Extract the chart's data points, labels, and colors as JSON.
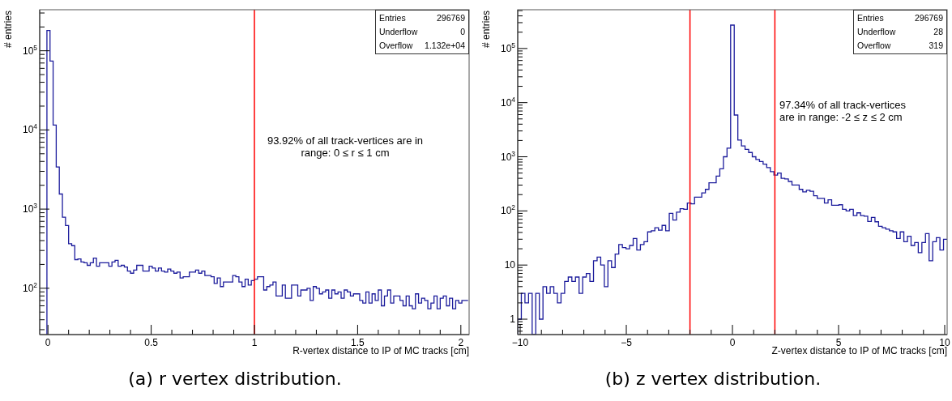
{
  "chart_data": [
    {
      "type": "histogram",
      "title": "(a) r vertex distribution.",
      "xlabel": "R-vertex distance to IP of MC tracks [cm]",
      "ylabel": "# entries",
      "color": "#1c1c9c",
      "log": true,
      "xlim": [
        -0.04,
        2.04
      ],
      "ylim": [
        26,
        330000
      ],
      "xticks": [
        0,
        {
          "value": 0.1,
          "label": null
        },
        {
          "value": 0.2,
          "label": null
        },
        {
          "value": 0.3,
          "label": null
        },
        {
          "value": 0.4,
          "label": null
        },
        0.5,
        {
          "value": 0.6,
          "label": null
        },
        {
          "value": 0.7,
          "label": null
        },
        {
          "value": 0.8,
          "label": null
        },
        {
          "value": 0.9,
          "label": null
        },
        1,
        {
          "value": 1.1,
          "label": null
        },
        {
          "value": 1.2,
          "label": null
        },
        {
          "value": 1.3,
          "label": null
        },
        {
          "value": 1.4,
          "label": null
        },
        1.5,
        {
          "value": 1.6,
          "label": null
        },
        {
          "value": 1.7,
          "label": null
        },
        {
          "value": 1.8,
          "label": null
        },
        {
          "value": 1.9,
          "label": null
        },
        2
      ],
      "yticks": [
        {
          "value": 30,
          "label": null
        },
        {
          "value": 40,
          "label": null
        },
        {
          "value": 50,
          "label": null
        },
        {
          "value": 60,
          "label": null
        },
        {
          "value": 70,
          "label": null
        },
        {
          "value": 80,
          "label": null
        },
        {
          "value": 90,
          "label": null
        },
        {
          "value": 100,
          "label": "10$^{2}$"
        },
        {
          "value": 200,
          "label": null
        },
        {
          "value": 300,
          "label": null
        },
        {
          "value": 400,
          "label": null
        },
        {
          "value": 500,
          "label": null
        },
        {
          "value": 600,
          "label": null
        },
        {
          "value": 700,
          "label": null
        },
        {
          "value": 800,
          "label": null
        },
        {
          "value": 900,
          "label": null
        },
        {
          "value": 1000,
          "label": "10$^{3}$"
        },
        {
          "value": 2000,
          "label": null
        },
        {
          "value": 3000,
          "label": null
        },
        {
          "value": 4000,
          "label": null
        },
        {
          "value": 5000,
          "label": null
        },
        {
          "value": 6000,
          "label": null
        },
        {
          "value": 7000,
          "label": null
        },
        {
          "value": 8000,
          "label": null
        },
        {
          "value": 9000,
          "label": null
        },
        {
          "value": 10000,
          "label": "10$^{4}$"
        },
        {
          "value": 20000,
          "label": null
        },
        {
          "value": 30000,
          "label": null
        },
        {
          "value": 40000,
          "label": null
        },
        {
          "value": 50000,
          "label": null
        },
        {
          "value": 60000,
          "label": null
        },
        {
          "value": 70000,
          "label": null
        },
        {
          "value": 80000,
          "label": null
        },
        {
          "value": 90000,
          "label": null
        },
        {
          "value": 100000,
          "label": "10$^{5}$"
        },
        {
          "value": 200000,
          "label": null
        },
        {
          "value": 300000,
          "label": null
        }
      ],
      "bins": [
        -0.005,
        0.01,
        0.025,
        0.04,
        0.055,
        0.07,
        0.085,
        0.1,
        0.115,
        0.13,
        0.145,
        0.16,
        0.175,
        0.19,
        0.205,
        0.22,
        0.235,
        0.25,
        0.265,
        0.28,
        0.295,
        0.31,
        0.325,
        0.34,
        0.355,
        0.37,
        0.385,
        0.4,
        0.415,
        0.43,
        0.445,
        0.46,
        0.475,
        0.49,
        0.505,
        0.52,
        0.535,
        0.55,
        0.565,
        0.58,
        0.595,
        0.61,
        0.625,
        0.64,
        0.655,
        0.67,
        0.685,
        0.7,
        0.715,
        0.73,
        0.745,
        0.76,
        0.775,
        0.79,
        0.805,
        0.82,
        0.835,
        0.85,
        0.865,
        0.88,
        0.895,
        0.91,
        0.925,
        0.94,
        0.955,
        0.97,
        0.985,
        1,
        1.015,
        1.03,
        1.045,
        1.06,
        1.075,
        1.09,
        1.105,
        1.12,
        1.135,
        1.15,
        1.165,
        1.18,
        1.195,
        1.21,
        1.225,
        1.24,
        1.255,
        1.27,
        1.285,
        1.3,
        1.315,
        1.33,
        1.345,
        1.36,
        1.375,
        1.39,
        1.405,
        1.42,
        1.435,
        1.45,
        1.465,
        1.48,
        1.495,
        1.51,
        1.525,
        1.54,
        1.555,
        1.57,
        1.585,
        1.6,
        1.615,
        1.63,
        1.645,
        1.66,
        1.675,
        1.69,
        1.705,
        1.72,
        1.735,
        1.75,
        1.765,
        1.78,
        1.795,
        1.81,
        1.825,
        1.84,
        1.855,
        1.87,
        1.885,
        1.9,
        1.915,
        1.93,
        1.945,
        1.96,
        1.975,
        1.99,
        2.005,
        2.02,
        2.035
      ],
      "values": [
        180000,
        74000,
        11500,
        3400,
        1550,
        790,
        620,
        365,
        345,
        230,
        235,
        215,
        210,
        195,
        210,
        240,
        190,
        210,
        210,
        210,
        190,
        215,
        225,
        190,
        195,
        185,
        165,
        155,
        170,
        195,
        195,
        165,
        165,
        190,
        180,
        165,
        180,
        165,
        160,
        175,
        165,
        155,
        160,
        135,
        140,
        140,
        160,
        160,
        170,
        155,
        165,
        145,
        145,
        140,
        115,
        135,
        105,
        120,
        120,
        120,
        145,
        140,
        120,
        105,
        130,
        110,
        125,
        130,
        140,
        140,
        95,
        105,
        110,
        120,
        80,
        80,
        110,
        75,
        75,
        110,
        110,
        80,
        95,
        95,
        100,
        70,
        105,
        100,
        85,
        90,
        95,
        75,
        95,
        85,
        90,
        75,
        95,
        90,
        80,
        85,
        85,
        70,
        65,
        90,
        65,
        85,
        70,
        95,
        60,
        80,
        95,
        65,
        80,
        80,
        70,
        60,
        80,
        60,
        55,
        85,
        65,
        75,
        70,
        55,
        65,
        80,
        55,
        75,
        80,
        60,
        75,
        55,
        70,
        65,
        70,
        70
      ],
      "ref_lines": [
        {
          "axis": "x",
          "value": 1,
          "color": "#ff0000"
        }
      ],
      "annotations": [
        "Entries",
        "296769",
        "Underflow",
        "0",
        "Overflow",
        "1.132e+04",
        "93.92% of all track-vertices are in\nrange: 0 ≤ r ≤ 1 cm"
      ]
    },
    {
      "type": "histogram",
      "title": "(b) z vertex distribution.",
      "xlabel": "Z-vertex distance to IP of MC tracks [cm]",
      "ylabel": "# entries",
      "color": "#1c1c9c",
      "log": true,
      "xlim": [
        -10.115,
        10.115
      ],
      "ylim": [
        0.52,
        520000
      ],
      "xticks": [
        {
          "value": -10,
          "label": "−10"
        },
        {
          "value": -9,
          "label": null
        },
        {
          "value": -8,
          "label": null
        },
        {
          "value": -7,
          "label": null
        },
        {
          "value": -6,
          "label": null
        },
        {
          "value": -5,
          "label": "−5"
        },
        {
          "value": -4,
          "label": null
        },
        {
          "value": -3,
          "label": null
        },
        {
          "value": -2,
          "label": null
        },
        {
          "value": -1,
          "label": null
        },
        0,
        {
          "value": 1,
          "label": null
        },
        {
          "value": 2,
          "label": null
        },
        {
          "value": 3,
          "label": null
        },
        {
          "value": 4,
          "label": null
        },
        5,
        {
          "value": 6,
          "label": null
        },
        {
          "value": 7,
          "label": null
        },
        {
          "value": 8,
          "label": null
        },
        {
          "value": 9,
          "label": null
        },
        10
      ],
      "yticks": [
        {
          "value": 0.6,
          "label": null
        },
        {
          "value": 0.7,
          "label": null
        },
        {
          "value": 0.8,
          "label": null
        },
        {
          "value": 0.9,
          "label": null
        },
        1,
        {
          "value": 2,
          "label": null
        },
        {
          "value": 3,
          "label": null
        },
        {
          "value": 4,
          "label": null
        },
        {
          "value": 5,
          "label": null
        },
        {
          "value": 6,
          "label": null
        },
        {
          "value": 7,
          "label": null
        },
        {
          "value": 8,
          "label": null
        },
        {
          "value": 9,
          "label": null
        },
        10,
        {
          "value": 20,
          "label": null
        },
        {
          "value": 30,
          "label": null
        },
        {
          "value": 40,
          "label": null
        },
        {
          "value": 50,
          "label": null
        },
        {
          "value": 60,
          "label": null
        },
        {
          "value": 70,
          "label": null
        },
        {
          "value": 80,
          "label": null
        },
        {
          "value": 90,
          "label": null
        },
        {
          "value": 100,
          "label": "10$^{2}$"
        },
        {
          "value": 200,
          "label": null
        },
        {
          "value": 300,
          "label": null
        },
        {
          "value": 400,
          "label": null
        },
        {
          "value": 500,
          "label": null
        },
        {
          "value": 600,
          "label": null
        },
        {
          "value": 700,
          "label": null
        },
        {
          "value": 800,
          "label": null
        },
        {
          "value": 900,
          "label": null
        },
        {
          "value": 1000,
          "label": "10$^{3}$"
        },
        {
          "value": 2000,
          "label": null
        },
        {
          "value": 3000,
          "label": null
        },
        {
          "value": 4000,
          "label": null
        },
        {
          "value": 5000,
          "label": null
        },
        {
          "value": 6000,
          "label": null
        },
        {
          "value": 7000,
          "label": null
        },
        {
          "value": 8000,
          "label": null
        },
        {
          "value": 9000,
          "label": null
        },
        {
          "value": 10000,
          "label": "10$^{4}$"
        },
        {
          "value": 20000,
          "label": null
        },
        {
          "value": 30000,
          "label": null
        },
        {
          "value": 40000,
          "label": null
        },
        {
          "value": 50000,
          "label": null
        },
        {
          "value": 60000,
          "label": null
        },
        {
          "value": 70000,
          "label": null
        },
        {
          "value": 80000,
          "label": null
        },
        {
          "value": 90000,
          "label": null
        },
        {
          "value": 100000,
          "label": "10$^{5}$"
        },
        {
          "value": 200000,
          "label": null
        },
        {
          "value": 300000,
          "label": null
        },
        {
          "value": 400000,
          "label": null
        },
        {
          "value": 500000,
          "label": null
        }
      ],
      "bins": [
        -10.115,
        -9.945,
        -9.775,
        -9.605,
        -9.435,
        -9.265,
        -9.095,
        -8.925,
        -8.755,
        -8.585,
        -8.415,
        -8.245,
        -8.075,
        -7.905,
        -7.735,
        -7.565,
        -7.395,
        -7.225,
        -7.055,
        -6.885,
        -6.715,
        -6.545,
        -6.375,
        -6.205,
        -6.035,
        -5.865,
        -5.695,
        -5.525,
        -5.355,
        -5.185,
        -5.015,
        -4.845,
        -4.675,
        -4.505,
        -4.335,
        -4.165,
        -3.995,
        -3.825,
        -3.655,
        -3.485,
        -3.315,
        -3.145,
        -2.975,
        -2.805,
        -2.635,
        -2.465,
        -2.295,
        -2.125,
        -1.955,
        -1.785,
        -1.615,
        -1.445,
        -1.275,
        -1.105,
        -0.935,
        -0.765,
        -0.595,
        -0.425,
        -0.255,
        -0.085,
        0.085,
        0.255,
        0.425,
        0.595,
        0.765,
        0.935,
        1.105,
        1.275,
        1.445,
        1.615,
        1.785,
        1.955,
        2.125,
        2.295,
        2.465,
        2.635,
        2.805,
        2.975,
        3.145,
        3.315,
        3.485,
        3.655,
        3.825,
        3.995,
        4.165,
        4.335,
        4.505,
        4.675,
        4.845,
        5.015,
        5.185,
        5.355,
        5.525,
        5.695,
        5.865,
        6.035,
        6.205,
        6.375,
        6.545,
        6.715,
        6.885,
        7.055,
        7.225,
        7.395,
        7.565,
        7.735,
        7.905,
        8.075,
        8.245,
        8.415,
        8.585,
        8.755,
        8.925,
        9.095,
        9.265,
        9.435,
        9.605,
        9.775,
        9.945,
        10.115
      ],
      "values": [
        1,
        3,
        2,
        3,
        null,
        3,
        1,
        4,
        3,
        4,
        3,
        2,
        3,
        5,
        6,
        5,
        6,
        3,
        6,
        7,
        5,
        12,
        14,
        10,
        4,
        12,
        9,
        16,
        24,
        21,
        20,
        23,
        31,
        19,
        24,
        27,
        41,
        43,
        49,
        44,
        54,
        43,
        90,
        68,
        95,
        110,
        107,
        140,
        135,
        180,
        180,
        215,
        250,
        330,
        330,
        440,
        600,
        1000,
        1440,
        270000,
        5900,
        2040,
        1590,
        1370,
        1200,
        1000,
        890,
        820,
        730,
        630,
        530,
        460,
        500,
        400,
        390,
        350,
        300,
        300,
        250,
        225,
        240,
        230,
        190,
        170,
        170,
        140,
        160,
        127,
        127,
        130,
        107,
        100,
        107,
        82,
        92,
        82,
        80,
        64,
        76,
        63,
        52,
        49,
        46,
        43,
        41,
        31,
        41,
        27,
        34,
        23,
        26,
        17,
        26,
        38,
        12,
        27,
        32,
        19,
        30
      ],
      "ref_lines": [
        {
          "axis": "x",
          "value": -2,
          "color": "#ff0000"
        },
        {
          "axis": "x",
          "value": 2,
          "color": "#ff0000"
        }
      ],
      "annotations": [
        "Entries",
        "296769",
        "Underflow",
        "28",
        "Overflow",
        "319",
        "97.34% of all track-vertices\nare in range: -2 ≤ z ≤ 2 cm"
      ]
    }
  ]
}
